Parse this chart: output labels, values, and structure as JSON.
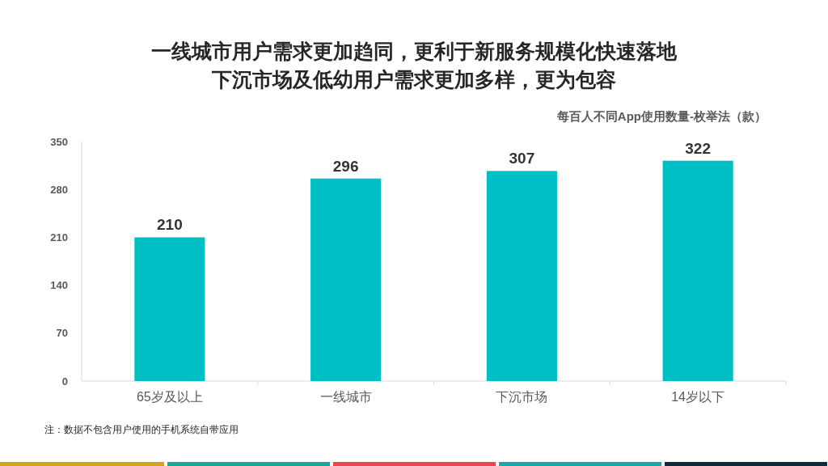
{
  "chart_data": {
    "type": "bar",
    "title": "一线城市用户需求更加趋同，更利于新服务规模化快速落地",
    "subtitle": "下沉市场及低幼用户需求更加多样，更为包容",
    "ylabel": "每百人不同App使用数量-枚举法（款）",
    "categories": [
      "65岁及以上",
      "一线城市",
      "下沉市场",
      "14岁以下"
    ],
    "values": [
      210,
      296,
      307,
      322
    ],
    "color": "#00bfc4",
    "data_labels": true,
    "ylim": [
      0,
      350
    ],
    "yticks": [
      0,
      70,
      140,
      210,
      280,
      350
    ],
    "annotations": [
      "注：数据不包含用户使用的手机系统自带应用"
    ]
  }
}
